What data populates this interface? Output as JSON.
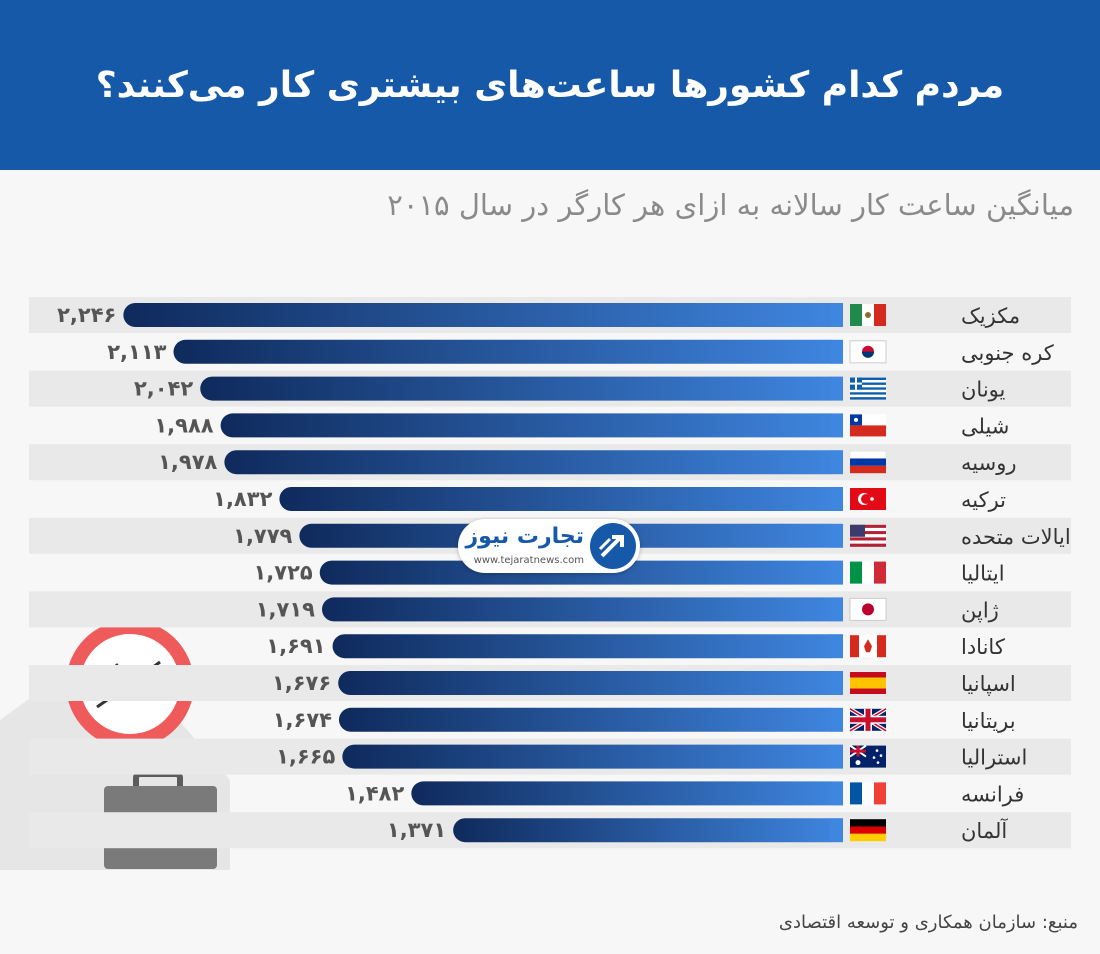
{
  "header": {
    "title": "مردم کدام کشورها ساعت‌های بیشتری کار می‌کنند؟"
  },
  "subtitle": "میانگین ساعت کار سالانه به ازای هر کارگر در سال ۲۰۱۵",
  "source": "منبع: سازمان همکاری و توسعه اقتصادی",
  "logo": {
    "name": "تجارت نیوز",
    "url": "www.tejaratnews.com"
  },
  "colors": {
    "header_bg": "#1559a8",
    "bar_dark": "#0f2a5c",
    "bar_light": "#3f86e0",
    "row_stripe": "#e9e9e9",
    "clock_rim": "#ef5b5b",
    "briefcase": "#7a7a7a"
  },
  "chart_data": {
    "type": "bar",
    "orientation": "horizontal",
    "categories": [
      "مکزیک",
      "کره جنوبی",
      "یونان",
      "شیلی",
      "روسیه",
      "ترکیه",
      "ایالات متحده",
      "ایتالیا",
      "ژاپن",
      "کانادا",
      "اسپانیا",
      "بریتانیا",
      "استرالیا",
      "فرانسه",
      "آلمان"
    ],
    "flags": [
      "mexico-flag",
      "south-korea-flag",
      "greece-flag",
      "chile-flag",
      "russia-flag",
      "turkey-flag",
      "usa-flag",
      "italy-flag",
      "japan-flag",
      "canada-flag",
      "spain-flag",
      "uk-flag",
      "australia-flag",
      "france-flag",
      "germany-flag"
    ],
    "values": [
      2246,
      2113,
      2042,
      1988,
      1978,
      1832,
      1779,
      1725,
      1719,
      1691,
      1676,
      1674,
      1665,
      1482,
      1371
    ],
    "value_labels": [
      "۲,۲۴۶",
      "۲,۱۱۳",
      "۲,۰۴۲",
      "۱,۹۸۸",
      "۱,۹۷۸",
      "۱,۸۳۲",
      "۱,۷۷۹",
      "۱,۷۲۵",
      "۱,۷۱۹",
      "۱,۶۹۱",
      "۱,۶۷۶",
      "۱,۶۷۴",
      "۱,۶۶۵",
      "۱,۴۸۲",
      "۱,۳۷۱"
    ]
  }
}
